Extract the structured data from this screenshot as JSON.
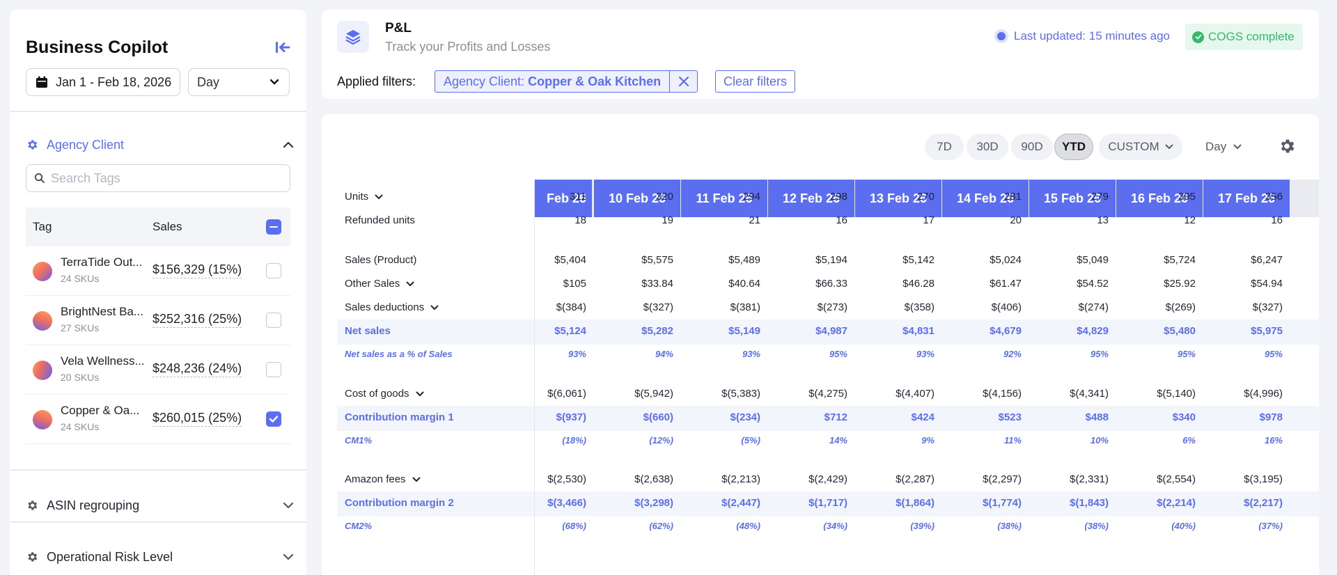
{
  "sidebar": {
    "title": "Business Copilot",
    "date_range": "Jan 1 - Feb 18, 2026",
    "granularity": "Day",
    "agency_section": {
      "title": "Agency Client",
      "search_placeholder": "Search Tags",
      "columns": {
        "tag": "Tag",
        "sales": "Sales"
      },
      "rows": [
        {
          "name": "TerraTide Out...",
          "skus": "24 SKUs",
          "sales": "$156,329 (15%)",
          "checked": false
        },
        {
          "name": "BrightNest Ba...",
          "skus": "27 SKUs",
          "sales": "$252,316 (25%)",
          "checked": false
        },
        {
          "name": "Vela Wellness...",
          "skus": "20 SKUs",
          "sales": "$248,236 (24%)",
          "checked": false
        },
        {
          "name": "Copper & Oa...",
          "skus": "24 SKUs",
          "sales": "$260,015 (25%)",
          "checked": true
        }
      ]
    },
    "asin_section": {
      "title": "ASIN regrouping"
    },
    "risk_section": {
      "title": "Operational Risk Level"
    }
  },
  "header": {
    "title": "P&L",
    "subtitle": "Track your Profits and Losses",
    "last_updated": "Last updated: 15 minutes ago",
    "cogs_status": "COGS complete",
    "filters_label": "Applied filters:",
    "filter_chip": {
      "key": "Agency Client:",
      "value": "Copper & Oak Kitchen"
    },
    "clear_filters": "Clear filters"
  },
  "toolbar": {
    "periods": [
      "7D",
      "30D",
      "90D",
      "YTD",
      "CUSTOM"
    ],
    "active_period": "YTD",
    "day_select": "Day"
  },
  "table": {
    "columns": [
      "Feb 26",
      "10 Feb 26",
      "11 Feb 26",
      "12 Feb 26",
      "13 Feb 26",
      "14 Feb 26",
      "15 Feb 26",
      "16 Feb 26",
      "17 Feb 26"
    ],
    "rows": [
      {
        "label": "Units",
        "expandable": true,
        "values": [
          "311",
          "320",
          "294",
          "298",
          "270",
          "281",
          "279",
          "305",
          "356"
        ]
      },
      {
        "label": "Refunded units",
        "values": [
          "18",
          "19",
          "21",
          "16",
          "17",
          "20",
          "13",
          "12",
          "16"
        ]
      },
      {
        "label": "Sales (Product)",
        "values": [
          "$5,404",
          "$5,575",
          "$5,489",
          "$5,194",
          "$5,142",
          "$5,024",
          "$5,049",
          "$5,724",
          "$6,247"
        ]
      },
      {
        "label": "Other Sales",
        "expandable": true,
        "values": [
          "$105",
          "$33.84",
          "$40.64",
          "$66.33",
          "$46.28",
          "$61.47",
          "$54.52",
          "$25.92",
          "$54.94"
        ]
      },
      {
        "label": "Sales deductions",
        "expandable": true,
        "values": [
          "$(384)",
          "$(327)",
          "$(381)",
          "$(273)",
          "$(358)",
          "$(406)",
          "$(274)",
          "$(269)",
          "$(327)"
        ]
      },
      {
        "label": "Net sales",
        "style": "highlight",
        "values": [
          "$5,124",
          "$5,282",
          "$5,149",
          "$4,987",
          "$4,831",
          "$4,679",
          "$4,829",
          "$5,480",
          "$5,975"
        ]
      },
      {
        "label": "Net sales as a % of Sales",
        "style": "percent",
        "values": [
          "93%",
          "94%",
          "93%",
          "95%",
          "93%",
          "92%",
          "95%",
          "95%",
          "95%"
        ]
      },
      {
        "label": "Cost of goods",
        "expandable": true,
        "values": [
          "$(6,061)",
          "$(5,942)",
          "$(5,383)",
          "$(4,275)",
          "$(4,407)",
          "$(4,156)",
          "$(4,341)",
          "$(5,140)",
          "$(4,996)"
        ]
      },
      {
        "label": "Contribution margin 1",
        "style": "highlight",
        "values": [
          "$(937)",
          "$(660)",
          "$(234)",
          "$712",
          "$424",
          "$523",
          "$488",
          "$340",
          "$978"
        ]
      },
      {
        "label": "CM1%",
        "style": "percent",
        "values": [
          "(18%)",
          "(12%)",
          "(5%)",
          "14%",
          "9%",
          "11%",
          "10%",
          "6%",
          "16%"
        ]
      },
      {
        "label": "Amazon fees",
        "expandable": true,
        "values": [
          "$(2,530)",
          "$(2,638)",
          "$(2,213)",
          "$(2,429)",
          "$(2,287)",
          "$(2,297)",
          "$(2,331)",
          "$(2,554)",
          "$(3,195)"
        ]
      },
      {
        "label": "Contribution margin 2",
        "style": "highlight",
        "values": [
          "$(3,466)",
          "$(3,298)",
          "$(2,447)",
          "$(1,717)",
          "$(1,864)",
          "$(1,774)",
          "$(1,843)",
          "$(2,214)",
          "$(2,217)"
        ]
      },
      {
        "label": "CM2%",
        "style": "percent",
        "values": [
          "(68%)",
          "(62%)",
          "(48%)",
          "(34%)",
          "(39%)",
          "(38%)",
          "(38%)",
          "(40%)",
          "(37%)"
        ]
      }
    ]
  },
  "colors": {
    "accent": "#5b6ef0",
    "success": "#35b86b",
    "highlight_row": "#f3f5fc"
  }
}
